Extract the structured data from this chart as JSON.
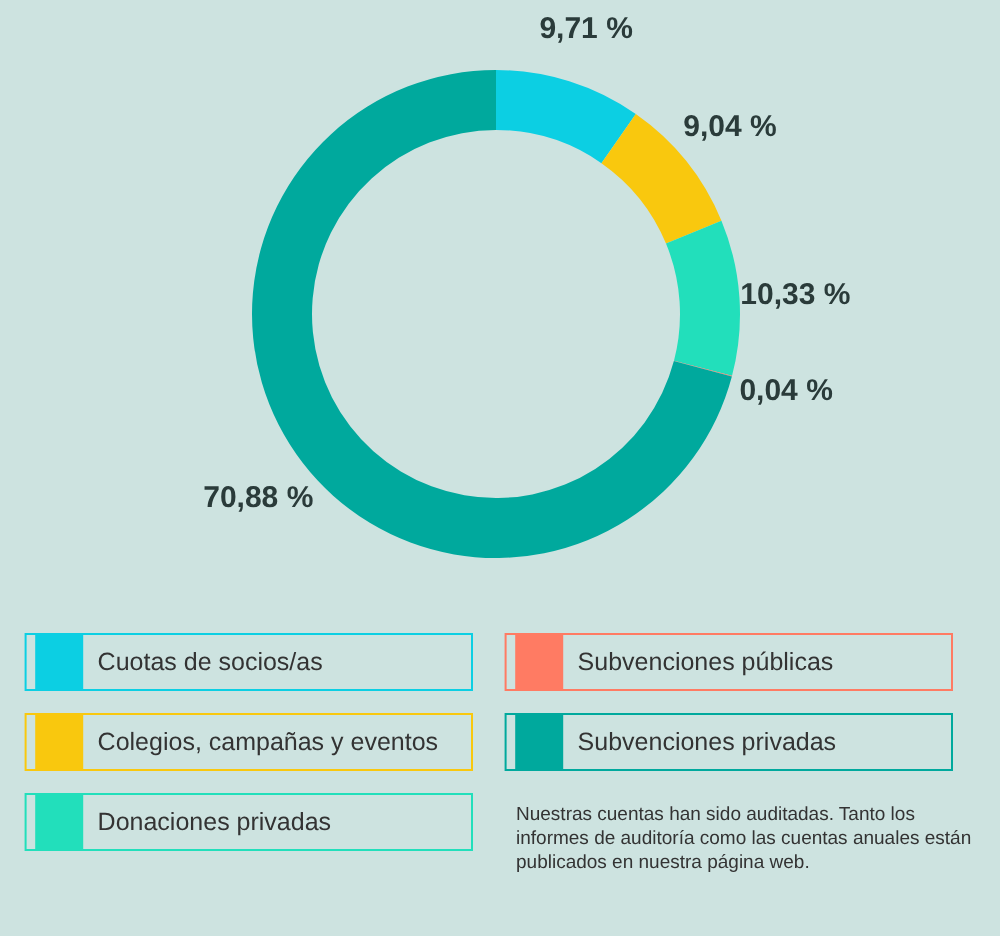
{
  "chart_data": {
    "type": "donut",
    "categories": [
      "Cuotas de socios/as",
      "Colegios, campañas y eventos",
      "Donaciones privadas",
      "Subvenciones públicas",
      "Subvenciones privadas"
    ],
    "values": [
      9.71,
      9.04,
      10.33,
      0.04,
      70.88
    ],
    "value_labels": [
      "9,71 %",
      "9,04 %",
      "10,33 %",
      "0,04 %",
      "70,88 %"
    ],
    "colors": [
      "#0ccfe3",
      "#f9c80e",
      "#22dfbb",
      "#ff7b63",
      "#00a99d"
    ],
    "legend": "bottom",
    "annotations": [
      "Nuestras cuentas han sido auditadas. Tanto los informes de auditoría como las cuentas anuales están publicados en nuestra página web."
    ]
  }
}
